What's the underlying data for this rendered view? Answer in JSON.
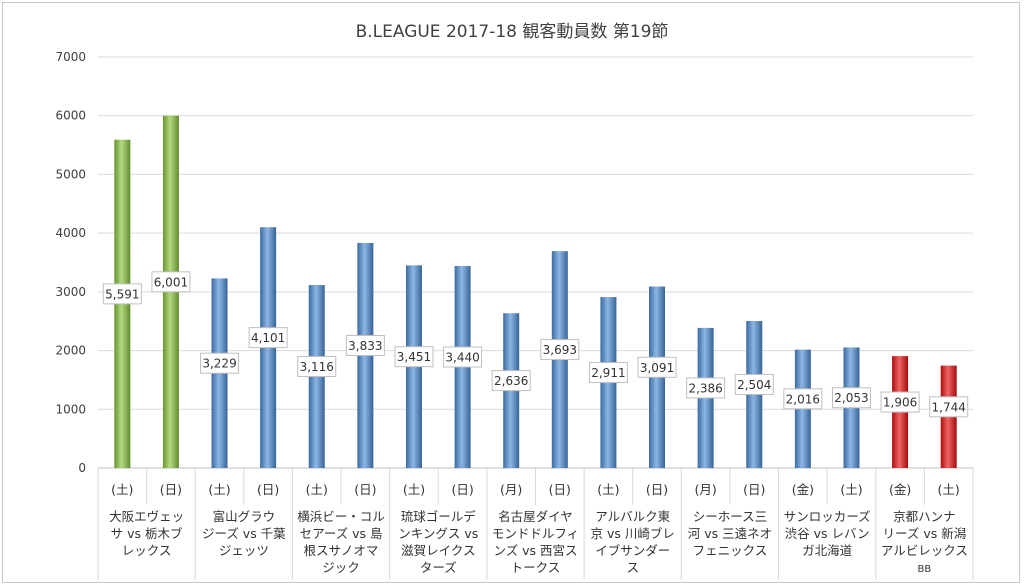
{
  "chart_data": {
    "type": "bar",
    "title": "B.LEAGUE 2017-18 観客動員数 第19節",
    "xlabel": "",
    "ylabel": "",
    "ylim": [
      0,
      7000
    ],
    "yticks": [
      0,
      1000,
      2000,
      3000,
      4000,
      5000,
      6000,
      7000
    ],
    "grid": true,
    "legend": "none",
    "days": [
      "(土)",
      "(日)",
      "(土)",
      "(日)",
      "(土)",
      "(日)",
      "(土)",
      "(日)",
      "(月)",
      "(日)",
      "(土)",
      "(日)",
      "(月)",
      "(日)",
      "(金)",
      "(土)",
      "(金)",
      "(土)"
    ],
    "values": [
      5591,
      6001,
      3229,
      4101,
      3116,
      3833,
      3451,
      3440,
      2636,
      3693,
      2911,
      3091,
      2386,
      2504,
      2016,
      2053,
      1906,
      1744
    ],
    "value_labels": [
      "5,591",
      "6,001",
      "3,229",
      "4,101",
      "3,116",
      "3,833",
      "3,451",
      "3,440",
      "2,636",
      "3,693",
      "2,911",
      "3,091",
      "2,386",
      "2,504",
      "2,016",
      "2,053",
      "1,906",
      "1,744"
    ],
    "bar_colors": [
      "#8cc63f",
      "#8cc63f",
      "#4f8fd6",
      "#4f8fd6",
      "#4f8fd6",
      "#4f8fd6",
      "#4f8fd6",
      "#4f8fd6",
      "#4f8fd6",
      "#4f8fd6",
      "#4f8fd6",
      "#4f8fd6",
      "#4f8fd6",
      "#4f8fd6",
      "#4f8fd6",
      "#4f8fd6",
      "#e81010",
      "#e81010"
    ],
    "matchups": [
      [
        "大阪エヴェッ",
        "サ vs 栃木ブ",
        "レックス"
      ],
      [
        "富山グラウ",
        "ジーズ vs 千葉",
        "ジェッツ"
      ],
      [
        "横浜ビー・コル",
        "セアーズ vs 島",
        "根スサノオマ",
        "ジック"
      ],
      [
        "琉球ゴールデ",
        "ンキングス vs",
        "滋賀レイクス",
        "ターズ"
      ],
      [
        "名古屋ダイヤ",
        "モンドドルフィ",
        "ンズ vs 西宮ス",
        "トークス"
      ],
      [
        "アルバルク東",
        "京 vs 川崎ブレ",
        "イブサンダー",
        "ス"
      ],
      [
        "シーホース三",
        "河 vs 三遠ネオ",
        "フェニックス"
      ],
      [
        "サンロッカーズ",
        "渋谷 vs レバン",
        "ガ北海道"
      ],
      [
        "京都ハンナ",
        "リーズ vs 新潟",
        "アルビレックス",
        "BB"
      ]
    ]
  }
}
